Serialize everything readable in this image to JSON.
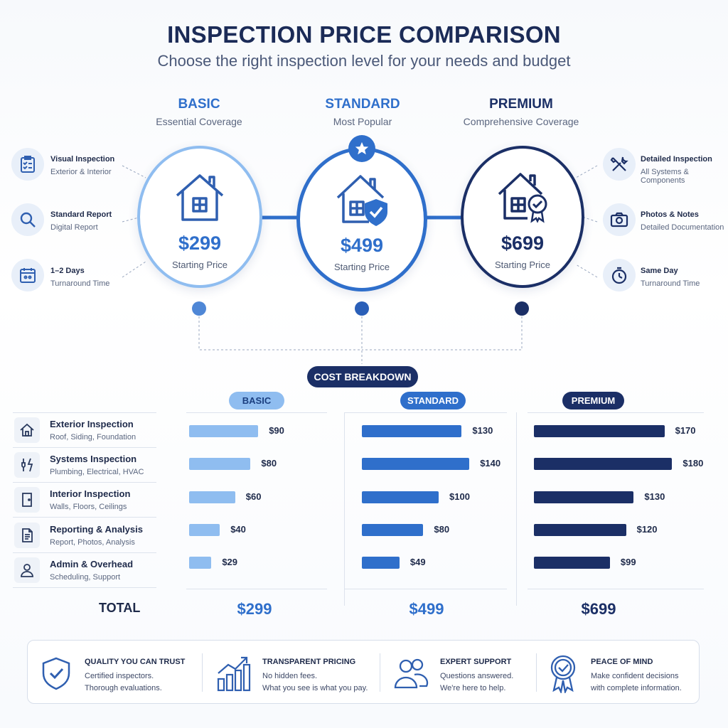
{
  "title": "INSPECTION PRICE COMPARISON",
  "subtitle": "Choose the right inspection level for your needs and budget",
  "colors": {
    "basic": "#8fbdf0",
    "standard": "#2f6fcb",
    "premium": "#1b2f66",
    "ink": "#1e2a4a"
  },
  "tiers": [
    {
      "name": "BASIC",
      "sub": "Essential Coverage",
      "price": "$299",
      "price_label": "Starting Price",
      "icon": "house-icon"
    },
    {
      "name": "STANDARD",
      "sub": "Most Popular",
      "price": "$499",
      "price_label": "Starting Price",
      "icon": "house-shield-icon"
    },
    {
      "name": "PREMIUM",
      "sub": "Comprehensive Coverage",
      "price": "$699",
      "price_label": "Starting Price",
      "icon": "house-badge-icon"
    }
  ],
  "left_features": [
    {
      "title": "Visual Inspection",
      "sub": "Exterior & Interior",
      "icon": "clipboard-icon"
    },
    {
      "title": "Standard Report",
      "sub": "Digital Report",
      "icon": "magnifier-icon"
    },
    {
      "title": "1–2 Days",
      "sub": "Turnaround Time",
      "icon": "calendar-icon"
    }
  ],
  "right_features": [
    {
      "title": "Detailed Inspection",
      "sub": "All Systems & Components",
      "icon": "tools-icon"
    },
    {
      "title": "Photos & Notes",
      "sub": "Detailed Documentation",
      "icon": "camera-icon"
    },
    {
      "title": "Same Day",
      "sub": "Turnaround Time",
      "icon": "stopwatch-icon"
    }
  ],
  "breakdown_label": "COST BREAKDOWN",
  "total_label": "TOTAL",
  "chart_data": {
    "type": "bar",
    "orientation": "horizontal",
    "title": "COST BREAKDOWN",
    "categories": [
      {
        "name": "Exterior Inspection",
        "sub": "Roof, Siding, Foundation",
        "icon": "house-outline-icon"
      },
      {
        "name": "Systems Inspection",
        "sub": "Plumbing, Electrical, HVAC",
        "icon": "plumbing-electric-icon"
      },
      {
        "name": "Interior Inspection",
        "sub": "Walls, Floors, Ceilings",
        "icon": "door-icon"
      },
      {
        "name": "Reporting & Analysis",
        "sub": "Report, Photos, Analysis",
        "icon": "document-icon"
      },
      {
        "name": "Admin & Overhead",
        "sub": "Scheduling, Support",
        "icon": "person-icon"
      }
    ],
    "series": [
      {
        "name": "BASIC",
        "values": [
          90,
          80,
          60,
          40,
          29
        ],
        "labels": [
          "$90",
          "$80",
          "$60",
          "$40",
          "$29"
        ],
        "total": "$299"
      },
      {
        "name": "STANDARD",
        "values": [
          130,
          140,
          100,
          80,
          49
        ],
        "labels": [
          "$130",
          "$140",
          "$100",
          "$80",
          "$49"
        ],
        "total": "$499"
      },
      {
        "name": "PREMIUM",
        "values": [
          170,
          180,
          130,
          120,
          99
        ],
        "labels": [
          "$170",
          "$180",
          "$130",
          "$120",
          "$99"
        ],
        "total": "$699"
      }
    ]
  },
  "footer": [
    {
      "title": "QUALITY YOU CAN TRUST",
      "l1": "Certified inspectors.",
      "l2": "Thorough evaluations.",
      "icon": "shield-check-icon"
    },
    {
      "title": "TRANSPARENT PRICING",
      "l1": "No hidden fees.",
      "l2": "What you see is what you pay.",
      "icon": "growth-chart-icon"
    },
    {
      "title": "EXPERT SUPPORT",
      "l1": "Questions answered.",
      "l2": "We're here to help.",
      "icon": "people-icon"
    },
    {
      "title": "PEACE OF MIND",
      "l1": "Make confident decisions",
      "l2": "with complete information.",
      "icon": "award-ribbon-icon"
    }
  ]
}
